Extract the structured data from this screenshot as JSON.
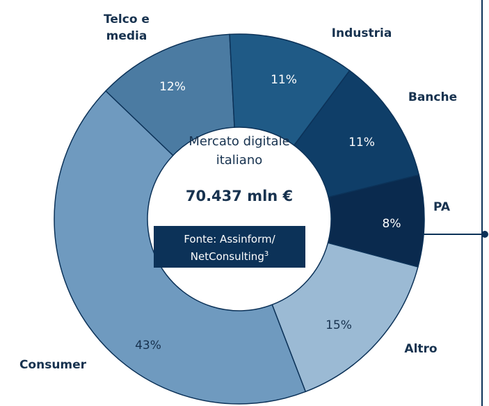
{
  "chart_data": {
    "type": "donut",
    "center_title": "Mercato digitale italiano",
    "total_label": "70.437 mln €",
    "source": "Fonte: Assinform/ NetConsulting",
    "source_note": "3",
    "categories": [
      "Industria",
      "Banche",
      "PA",
      "Altro",
      "Consumer",
      "Telco e media"
    ],
    "values": [
      11,
      11,
      8,
      15,
      43,
      12
    ],
    "value_labels": [
      "11%",
      "11%",
      "8%",
      "15%",
      "43%",
      "12%"
    ],
    "colors": [
      "#1f5a86",
      "#0f3e68",
      "#0a2a4e",
      "#9bbad4",
      "#6f9abf",
      "#4b7ba2"
    ]
  }
}
